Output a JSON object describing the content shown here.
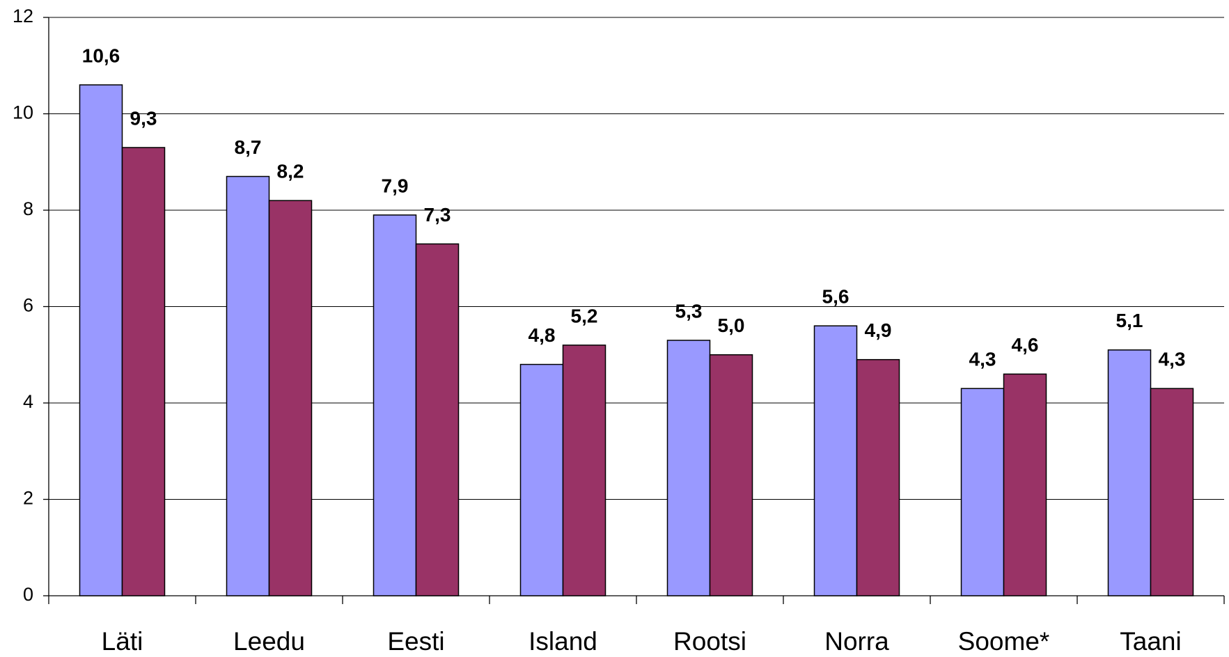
{
  "chart_data": {
    "type": "bar",
    "categories": [
      "Läti",
      "Leedu",
      "Eesti",
      "Island",
      "Rootsi",
      "Norra",
      "Soome*",
      "Taani"
    ],
    "series": [
      {
        "color": "#9999ff",
        "values": [
          10.6,
          8.7,
          7.9,
          4.8,
          5.3,
          5.6,
          4.3,
          5.1
        ],
        "value_labels": [
          "10,6",
          "8,7",
          "7,9",
          "4,8",
          "5,3",
          "5,6",
          "4,3",
          "5,1"
        ]
      },
      {
        "color": "#993366",
        "values": [
          9.3,
          8.2,
          7.3,
          5.2,
          5.0,
          4.9,
          4.6,
          4.3
        ],
        "value_labels": [
          "9,3",
          "8,2",
          "7,3",
          "5,2",
          "5,0",
          "4,9",
          "4,6",
          "4,3"
        ]
      }
    ],
    "ylim": [
      0,
      12
    ],
    "yticks": [
      0,
      2,
      4,
      6,
      8,
      10,
      12
    ],
    "grid": true
  }
}
